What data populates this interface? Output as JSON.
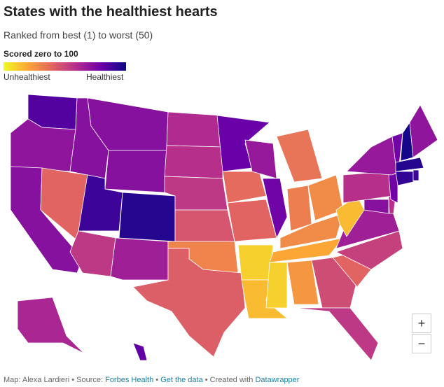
{
  "chart_data": {
    "type": "choropleth",
    "title": "States with the healthiest hearts",
    "subtitle": "Ranked from best (1) to worst (50)",
    "legend_title": "Scored zero to 100",
    "legend_low": "Unhealthiest",
    "legend_high": "Healthiest",
    "zlim": [
      0,
      100
    ],
    "colors": [
      "#f0f921",
      "#fca636",
      "#e16462",
      "#b12a90",
      "#6a00a8",
      "#0d0887"
    ],
    "values": [
      85,
      70,
      72,
      40,
      72,
      72,
      72,
      90,
      95,
      55,
      65,
      60,
      58,
      55,
      45,
      30,
      42,
      80,
      38,
      40,
      10,
      15,
      68,
      78,
      35,
      32,
      28,
      28,
      20,
      10,
      25,
      48,
      55,
      40,
      52,
      65,
      15,
      72,
      58,
      58,
      78,
      68,
      78,
      98,
      70,
      95,
      92,
      90,
      62,
      82
    ],
    "zoom_in": "+",
    "zoom_out": "−",
    "footer": {
      "prefix": "Map: Alexa Lardieri • Source: ",
      "source": "Forbes Health",
      "sep1": " • ",
      "data_link": "Get the data",
      "sep2": " • Created with ",
      "tool": "Datawrapper"
    }
  }
}
